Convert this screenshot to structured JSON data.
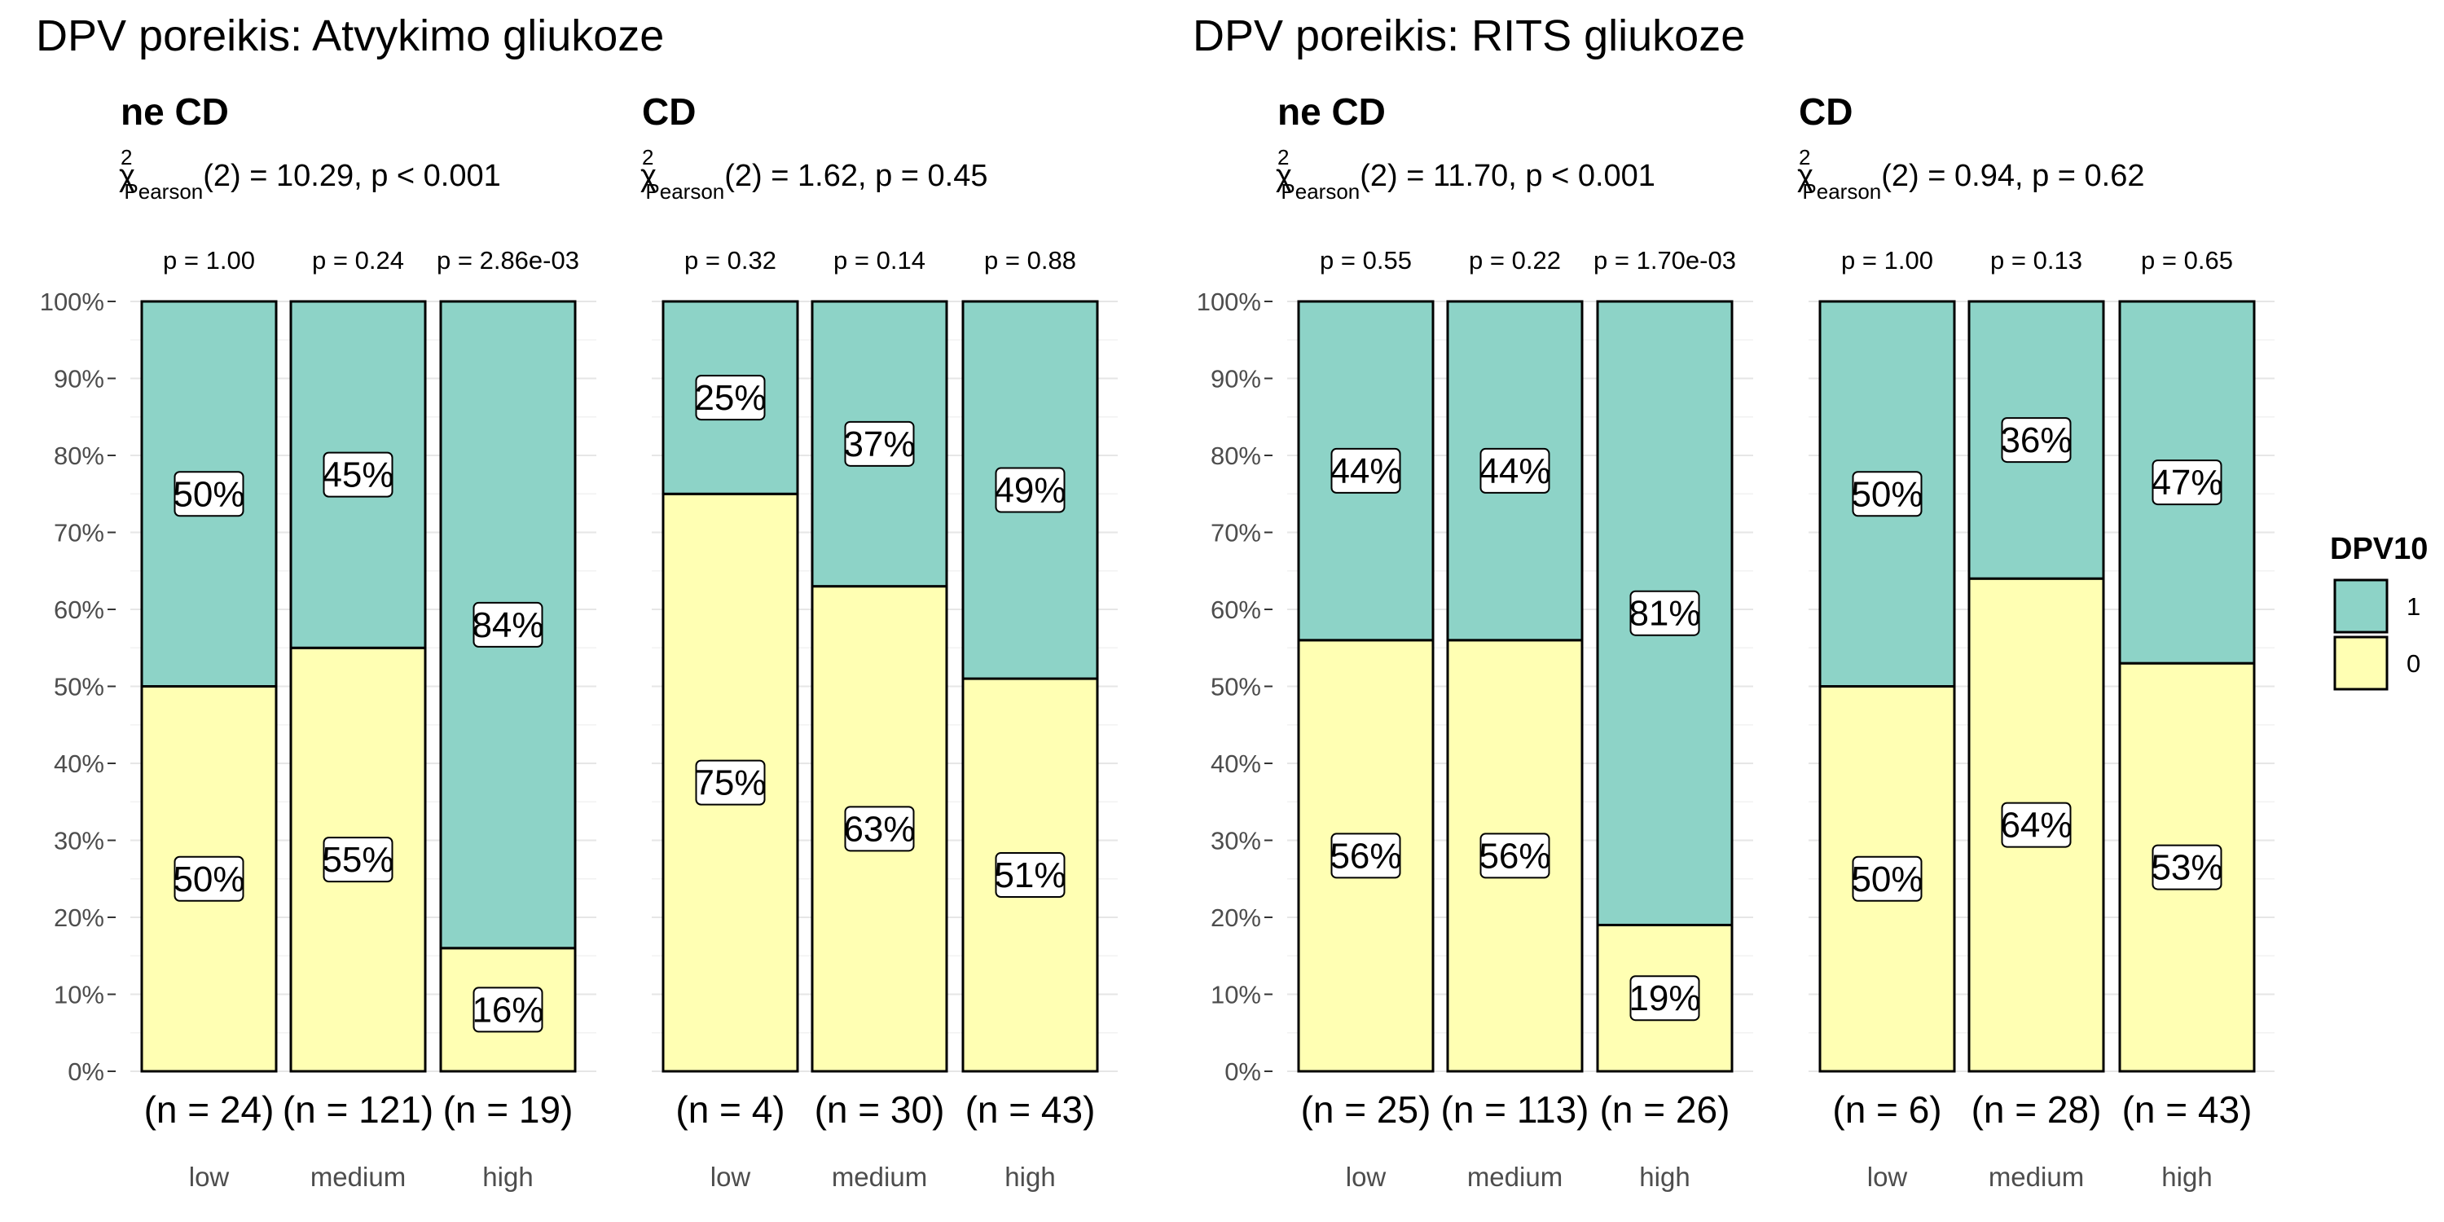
{
  "chart_data": {
    "type": "bar",
    "stacked": "percent",
    "y_axis": {
      "ticks": [
        "0%",
        "10%",
        "20%",
        "30%",
        "40%",
        "50%",
        "60%",
        "70%",
        "80%",
        "90%",
        "100%"
      ],
      "ylim": [
        0,
        100
      ]
    },
    "legend": {
      "title": "DPV10",
      "placement": "right",
      "entries": [
        {
          "label": "1",
          "color": "#8dd3c7"
        },
        {
          "label": "0",
          "color": "#ffffb3"
        }
      ]
    },
    "groups": [
      {
        "title": "DPV poreikis: Atvykimo gliukoze",
        "panels": [
          {
            "title": "ne CD",
            "stat_prefix": "χ",
            "stat_sup": "2",
            "stat_sub": "Pearson",
            "stat_rest": "(2) = 10.29, p < 0.001",
            "categories": [
              "low",
              "medium",
              "high"
            ],
            "p_labels": [
              "p = 1.00",
              "p = 0.24",
              "p = 2.86e-03"
            ],
            "n_labels": [
              "(n = 24)",
              "(n = 121)",
              "(n = 19)"
            ],
            "series": [
              {
                "name": "0",
                "values": [
                  50,
                  55,
                  16
                ],
                "labels": [
                  "50%",
                  "55%",
                  "16%"
                ]
              },
              {
                "name": "1",
                "values": [
                  50,
                  45,
                  84
                ],
                "labels": [
                  "50%",
                  "45%",
                  "84%"
                ]
              }
            ]
          },
          {
            "title": "CD",
            "stat_prefix": "χ",
            "stat_sup": "2",
            "stat_sub": "Pearson",
            "stat_rest": "(2) = 1.62, p = 0.45",
            "categories": [
              "low",
              "medium",
              "high"
            ],
            "p_labels": [
              "p = 0.32",
              "p = 0.14",
              "p = 0.88"
            ],
            "n_labels": [
              "(n = 4)",
              "(n = 30)",
              "(n = 43)"
            ],
            "series": [
              {
                "name": "0",
                "values": [
                  75,
                  63,
                  51
                ],
                "labels": [
                  "75%",
                  "63%",
                  "51%"
                ]
              },
              {
                "name": "1",
                "values": [
                  25,
                  37,
                  49
                ],
                "labels": [
                  "25%",
                  "37%",
                  "49%"
                ]
              }
            ]
          }
        ]
      },
      {
        "title": "DPV poreikis: RITS gliukoze",
        "panels": [
          {
            "title": "ne CD",
            "stat_prefix": "χ",
            "stat_sup": "2",
            "stat_sub": "Pearson",
            "stat_rest": "(2) = 11.70, p < 0.001",
            "categories": [
              "low",
              "medium",
              "high"
            ],
            "p_labels": [
              "p = 0.55",
              "p = 0.22",
              "p = 1.70e-03"
            ],
            "n_labels": [
              "(n = 25)",
              "(n = 113)",
              "(n = 26)"
            ],
            "series": [
              {
                "name": "0",
                "values": [
                  56,
                  56,
                  19
                ],
                "labels": [
                  "56%",
                  "56%",
                  "19%"
                ]
              },
              {
                "name": "1",
                "values": [
                  44,
                  44,
                  81
                ],
                "labels": [
                  "44%",
                  "44%",
                  "81%"
                ]
              }
            ]
          },
          {
            "title": "CD",
            "stat_prefix": "χ",
            "stat_sup": "2",
            "stat_sub": "Pearson",
            "stat_rest": "(2) = 0.94, p = 0.62",
            "categories": [
              "low",
              "medium",
              "high"
            ],
            "p_labels": [
              "p = 1.00",
              "p = 0.13",
              "p = 0.65"
            ],
            "n_labels": [
              "(n = 6)",
              "(n = 28)",
              "(n = 43)"
            ],
            "series": [
              {
                "name": "0",
                "values": [
                  50,
                  64,
                  53
                ],
                "labels": [
                  "50%",
                  "64%",
                  "53%"
                ]
              },
              {
                "name": "1",
                "values": [
                  50,
                  36,
                  47
                ],
                "labels": [
                  "50%",
                  "36%",
                  "47%"
                ]
              }
            ]
          }
        ]
      }
    ]
  }
}
